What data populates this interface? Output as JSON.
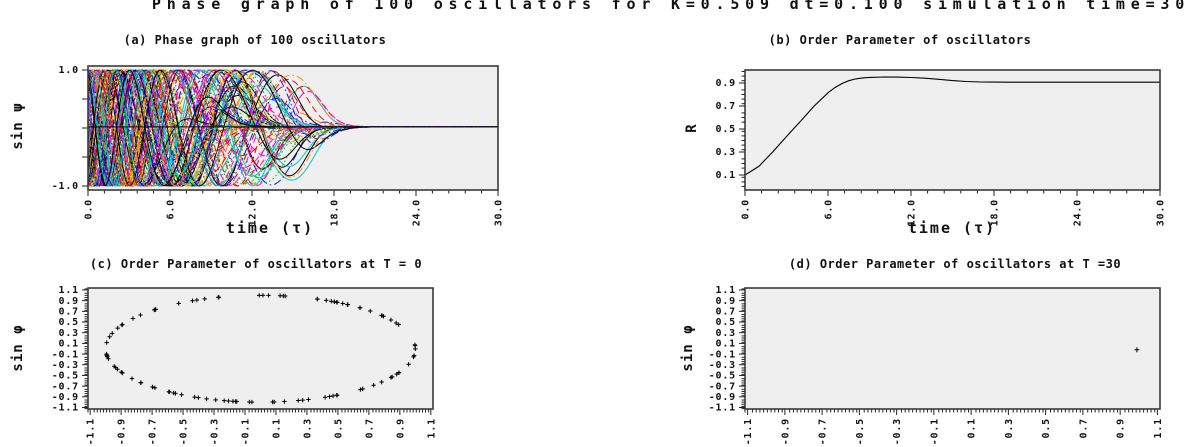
{
  "figure_title": "Phase graph of 100 oscillators for K=0.509 dt=0.100 simulation time=30",
  "panels": {
    "a": {
      "title": "(a) Phase graph of 100 oscillators",
      "xlabel": "time (τ)",
      "ylabel": "sin ψ",
      "xtick_labels": [
        "0.0",
        "6.0",
        "12.0",
        "18.0",
        "24.0",
        "30.0"
      ],
      "ytick_labels": [
        "1.0",
        "",
        "",
        "",
        "-1.0"
      ]
    },
    "b": {
      "title": "(b) Order Parameter of oscillators",
      "xlabel": "time (τ)",
      "ylabel": "R",
      "xtick_labels": [
        "0.0",
        "6.0",
        "12.0",
        "18.0",
        "24.0",
        "30.0"
      ],
      "ytick_labels": [
        "0.9",
        "0.7",
        "0.5",
        "0.3",
        "0.1"
      ]
    },
    "c": {
      "title": "(c) Order Parameter of oscillators at T = 0",
      "ylabel": "sin φ",
      "xtick_labels": [
        "-1.1",
        "-0.9",
        "-0.7",
        "-0.5",
        "-0.3",
        "-0.1",
        "0.1",
        "0.3",
        "0.5",
        "0.7",
        "0.9",
        "1.1"
      ],
      "ytick_labels": [
        "1.1",
        "0.9",
        "0.7",
        "0.5",
        "0.3",
        "0.1",
        "-0.1",
        "-0.3",
        "-0.5",
        "-0.7",
        "-0.9",
        "-1.1"
      ]
    },
    "d": {
      "title": "(d) Order Parameter of oscillators at T =30",
      "ylabel": "sin φ",
      "xtick_labels": [
        "-1.1",
        "-0.9",
        "-0.7",
        "-0.5",
        "-0.3",
        "-0.1",
        "0.1",
        "0.3",
        "0.5",
        "0.7",
        "0.9",
        "1.1"
      ],
      "ytick_labels": [
        "1.1",
        "0.9",
        "0.7",
        "0.5",
        "0.3",
        "0.1",
        "-0.1",
        "-0.3",
        "-0.5",
        "-0.7",
        "-0.9",
        "-1.1"
      ]
    }
  },
  "chart_data": [
    {
      "panel": "a",
      "type": "line",
      "title": "(a) Phase graph of 100 oscillators",
      "xlabel": "time (τ)",
      "ylabel": "sin ψ",
      "xlim": [
        0,
        30
      ],
      "ylim": [
        -1.05,
        1.05
      ],
      "n_series": 100,
      "description": "sin of the phase of each of 100 Kuramoto oscillators vs time; multicoloured solid/dashed/dotted trajectories oscillate, slow down and lock onto a single flat line at sin ψ ≈ 0.02 between t≈8 and t≈18, staying flat until t=30",
      "series_model": {
        "seed": 7,
        "theta0_distribution": "uniform[0,2π)",
        "omega_abs_range": [
          1.4,
          3.0
        ],
        "lock_time_range": [
          6,
          17
        ],
        "converged_value": 0.02,
        "time_step": 0.12
      },
      "colors": [
        "#000000",
        "#e81010",
        "#00b400",
        "#1616ff",
        "#00c8c8",
        "#ff00ff",
        "#e8d800",
        "#ff8c00"
      ],
      "dash_styles": [
        "solid",
        "dashed",
        "dotted",
        "dash-dot"
      ]
    },
    {
      "panel": "b",
      "type": "line",
      "title": "(b) Order Parameter of oscillators",
      "xlabel": "time (τ)",
      "ylabel": "R",
      "xlim": [
        0,
        30
      ],
      "ylim": [
        0,
        1
      ],
      "x": [
        0,
        1,
        2,
        3,
        4,
        5,
        6,
        6.5,
        7,
        7.5,
        8,
        8.5,
        9,
        10,
        11,
        12,
        13,
        14,
        15,
        16,
        17,
        18,
        19,
        20,
        22,
        24,
        26,
        28,
        30
      ],
      "y": [
        0.1,
        0.175,
        0.3,
        0.435,
        0.565,
        0.7,
        0.815,
        0.86,
        0.895,
        0.92,
        0.936,
        0.944,
        0.949,
        0.952,
        0.951,
        0.948,
        0.942,
        0.932,
        0.921,
        0.913,
        0.909,
        0.908,
        0.907,
        0.907,
        0.907,
        0.907,
        0.907,
        0.907,
        0.907
      ],
      "line_color": "#000000"
    },
    {
      "panel": "c",
      "type": "scatter",
      "title": "(c) Order Parameter of oscillators at T = 0",
      "ylabel": "sin φ",
      "xlim": [
        -1.1,
        1.1
      ],
      "ylim": [
        -1.1,
        1.1
      ],
      "marker": "+",
      "marker_color": "#000000",
      "description": "the 100 oscillators at t=0: points (cos φi, sin φi) scattered irregularly around the full unit circle",
      "points_model": {
        "n": 100,
        "radius": 1.0,
        "angles": "same seeded uniform angles as panel a"
      }
    },
    {
      "panel": "d",
      "type": "scatter",
      "title": "(d) Order Parameter of oscillators at T =30",
      "ylabel": "sin φ",
      "xlim": [
        -1.1,
        1.1
      ],
      "ylim": [
        -1.1,
        1.1
      ],
      "marker": "+",
      "marker_color": "#000000",
      "points": [
        [
          0.99,
          -0.02
        ]
      ],
      "description": "all 100 oscillators fully synchronized: a single point on the unit circle near (1, 0)"
    }
  ],
  "style": {
    "plot_background": "#efefef",
    "frame_color": "#3a3a3a",
    "text_color": "#111111"
  }
}
